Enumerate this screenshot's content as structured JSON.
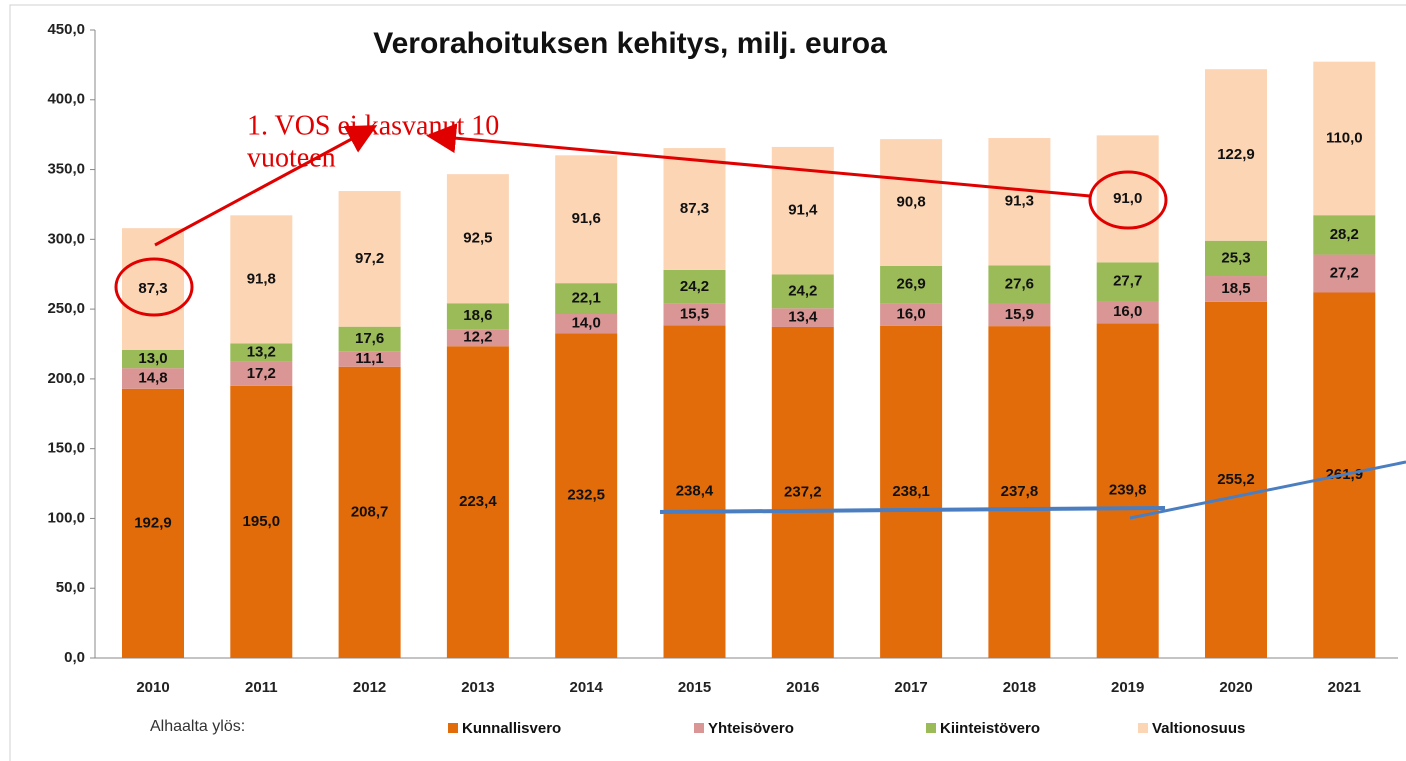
{
  "chart_data": {
    "type": "stacked_bar",
    "title": "Verorahoituksen kehitys, milj. euroa",
    "categories": [
      "2010",
      "2011",
      "2012",
      "2013",
      "2014",
      "2015",
      "2016",
      "2017",
      "2018",
      "2019",
      "2020",
      "2021"
    ],
    "series": [
      {
        "name": "Kunnallisvero",
        "color": "#e36c0a",
        "values": [
          192.9,
          195.0,
          208.7,
          223.4,
          232.5,
          238.4,
          237.2,
          238.1,
          237.8,
          239.8,
          255.2,
          261.9
        ],
        "value_labels": [
          "192,9",
          "195,0",
          "208,7",
          "223,4",
          "232,5",
          "238,4",
          "237,2",
          "238,1",
          "237,8",
          "239,8",
          "255,2",
          "261,9"
        ]
      },
      {
        "name": "Yhteisövero",
        "color": "#d99694",
        "values": [
          14.8,
          17.2,
          11.1,
          12.2,
          14.0,
          15.5,
          13.4,
          16.0,
          15.9,
          16.0,
          18.5,
          27.2
        ],
        "value_labels": [
          "14,8",
          "17,2",
          "11,1",
          "12,2",
          "14,0",
          "15,5",
          "13,4",
          "16,0",
          "15,9",
          "16,0",
          "18,5",
          "27,2"
        ]
      },
      {
        "name": "Kiinteistövero",
        "color": "#9bbb59",
        "values": [
          13.0,
          13.2,
          17.6,
          18.6,
          22.1,
          24.2,
          24.2,
          26.9,
          27.6,
          27.7,
          25.3,
          28.2
        ],
        "value_labels": [
          "13,0",
          "13,2",
          "17,6",
          "18,6",
          "22,1",
          "24,2",
          "24,2",
          "26,9",
          "27,6",
          "27,7",
          "25,3",
          "28,2"
        ]
      },
      {
        "name": "Valtionosuus",
        "color": "#fcd5b5",
        "values": [
          87.3,
          91.8,
          97.2,
          92.5,
          91.6,
          87.3,
          91.4,
          90.8,
          91.3,
          91.0,
          122.9,
          110.0
        ],
        "value_labels": [
          "87,3",
          "91,8",
          "97,2",
          "92,5",
          "91,6",
          "87,3",
          "91,4",
          "90,8",
          "91,3",
          "91,0",
          "122,9",
          "110,0"
        ]
      }
    ],
    "ylim": [
      0,
      450
    ],
    "yticks": [
      {
        "value": 0,
        "label": "0,0"
      },
      {
        "value": 50,
        "label": "50,0"
      },
      {
        "value": 100,
        "label": "100,0"
      },
      {
        "value": 150,
        "label": "150,0"
      },
      {
        "value": 200,
        "label": "200,0"
      },
      {
        "value": 250,
        "label": "250,0"
      },
      {
        "value": 300,
        "label": "300,0"
      },
      {
        "value": 350,
        "label": "350,0"
      },
      {
        "value": 400,
        "label": "400,0"
      },
      {
        "value": 450,
        "label": "450,0"
      }
    ],
    "legend_title": "Alhaalta ylös:",
    "annotation": [
      "1. VOS ei kasvanut 10",
      "vuoteen"
    ]
  }
}
